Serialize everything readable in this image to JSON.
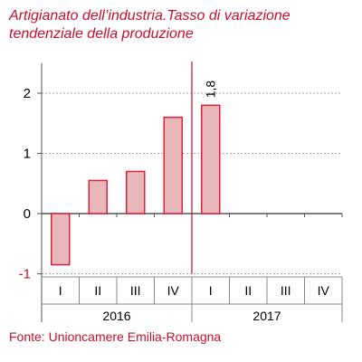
{
  "chart_data": {
    "type": "bar",
    "title": "Artigianato dell’industria.Tasso di variazione tendenziale della produzione",
    "xlabel": "",
    "ylabel": "",
    "categories": [
      "I",
      "II",
      "III",
      "IV",
      "I",
      "II",
      "III",
      "IV"
    ],
    "years": [
      {
        "label": "2016",
        "quarters": 4
      },
      {
        "label": "2017",
        "quarters": 4
      }
    ],
    "values": [
      -0.85,
      0.55,
      0.7,
      1.6,
      1.8,
      null,
      null,
      null
    ],
    "data_labels": [
      {
        "index": 4,
        "text": "1,8"
      }
    ],
    "ylim": [
      -1,
      2.5
    ],
    "yticks": [
      -1,
      0,
      1,
      2
    ],
    "ytick_labels": [
      "-1",
      "0",
      "1",
      "2"
    ],
    "grid": "horizontal dotted",
    "legend": "none",
    "colors": {
      "bar_fill": "#e8b7b9",
      "bar_stroke": "#e0203a",
      "year_separator": "#c8102e",
      "negative_tick": "#c8102e"
    }
  },
  "source": "Fonte: Unioncamere Emilia-Romagna"
}
